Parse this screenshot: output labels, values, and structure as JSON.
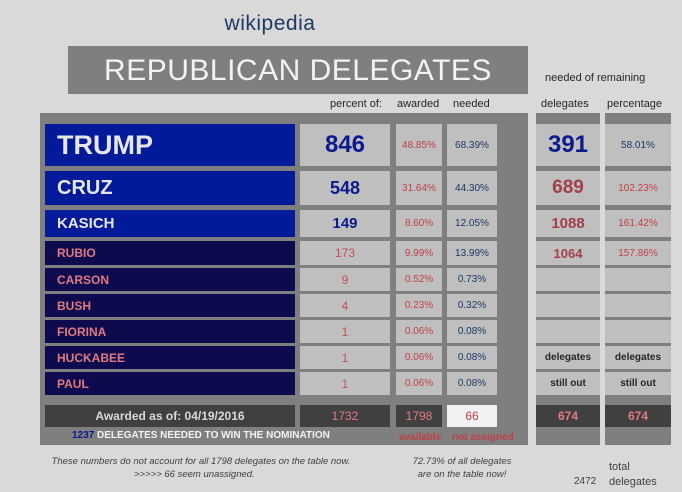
{
  "site": "wikipedia",
  "title": "REPUBLICAN DELEGATES",
  "headers": {
    "needed_of_remaining": "needed of remaining",
    "percent_of": "percent of:",
    "awarded": "awarded",
    "needed": "needed",
    "delegates": "delegates",
    "percentage": "percentage"
  },
  "candidates": [
    {
      "name": "TRUMP",
      "delegates": "846",
      "pct_awarded": "48.85%",
      "pct_needed": "68.39%",
      "rem_delegates": "391",
      "rem_pct": "58.01%"
    },
    {
      "name": "CRUZ",
      "delegates": "548",
      "pct_awarded": "31.64%",
      "pct_needed": "44.30%",
      "rem_delegates": "689",
      "rem_pct": "102.23%"
    },
    {
      "name": "KASICH",
      "delegates": "149",
      "pct_awarded": "8.60%",
      "pct_needed": "12.05%",
      "rem_delegates": "1088",
      "rem_pct": "161.42%"
    },
    {
      "name": "RUBIO",
      "delegates": "173",
      "pct_awarded": "9.99%",
      "pct_needed": "13.99%",
      "rem_delegates": "1064",
      "rem_pct": "157.86%"
    },
    {
      "name": "CARSON",
      "delegates": "9",
      "pct_awarded": "0.52%",
      "pct_needed": "0.73%"
    },
    {
      "name": "BUSH",
      "delegates": "4",
      "pct_awarded": "0.23%",
      "pct_needed": "0.32%"
    },
    {
      "name": "FIORINA",
      "delegates": "1",
      "pct_awarded": "0.06%",
      "pct_needed": "0.08%"
    },
    {
      "name": "HUCKABEE",
      "delegates": "1",
      "pct_awarded": "0.06%",
      "pct_needed": "0.08%"
    },
    {
      "name": "PAUL",
      "delegates": "1",
      "pct_awarded": "0.06%",
      "pct_needed": "0.08%"
    }
  ],
  "still_out": {
    "col1_line1": "delegates",
    "col1_line2": "still out",
    "col2_line1": "delegates",
    "col2_line2": "still out"
  },
  "footer": {
    "awarded_as_of": "Awarded as of: 04/19/2016",
    "total_awarded": "1732",
    "available": "1798",
    "not_assigned": "66",
    "still_out_delegates": "674",
    "still_out_percentage": "674",
    "needed_number": "1237",
    "needed_text": "DELEGATES NEEDED TO WIN THE NOMINATION",
    "available_label": "available",
    "not_assigned_label": "not assigned"
  },
  "notes": {
    "left_line1": "These numbers do not account for all 1798 delegates on the table now.",
    "left_line2": ">>>>>  66 seem unassigned.",
    "mid_line1": "72.73% of all delegates",
    "mid_line2": "are on the table now!",
    "total_number": "2472",
    "total_label1": "total",
    "total_label2": "delegates"
  },
  "colors": {
    "background": "#d9d9d9",
    "panel": "#7f7f7f",
    "name_bg_top": "#001a99",
    "name_bg_bottom": "#0d0a4d",
    "accent_red": "#c0505a",
    "accent_blue": "#0b1a8c"
  }
}
